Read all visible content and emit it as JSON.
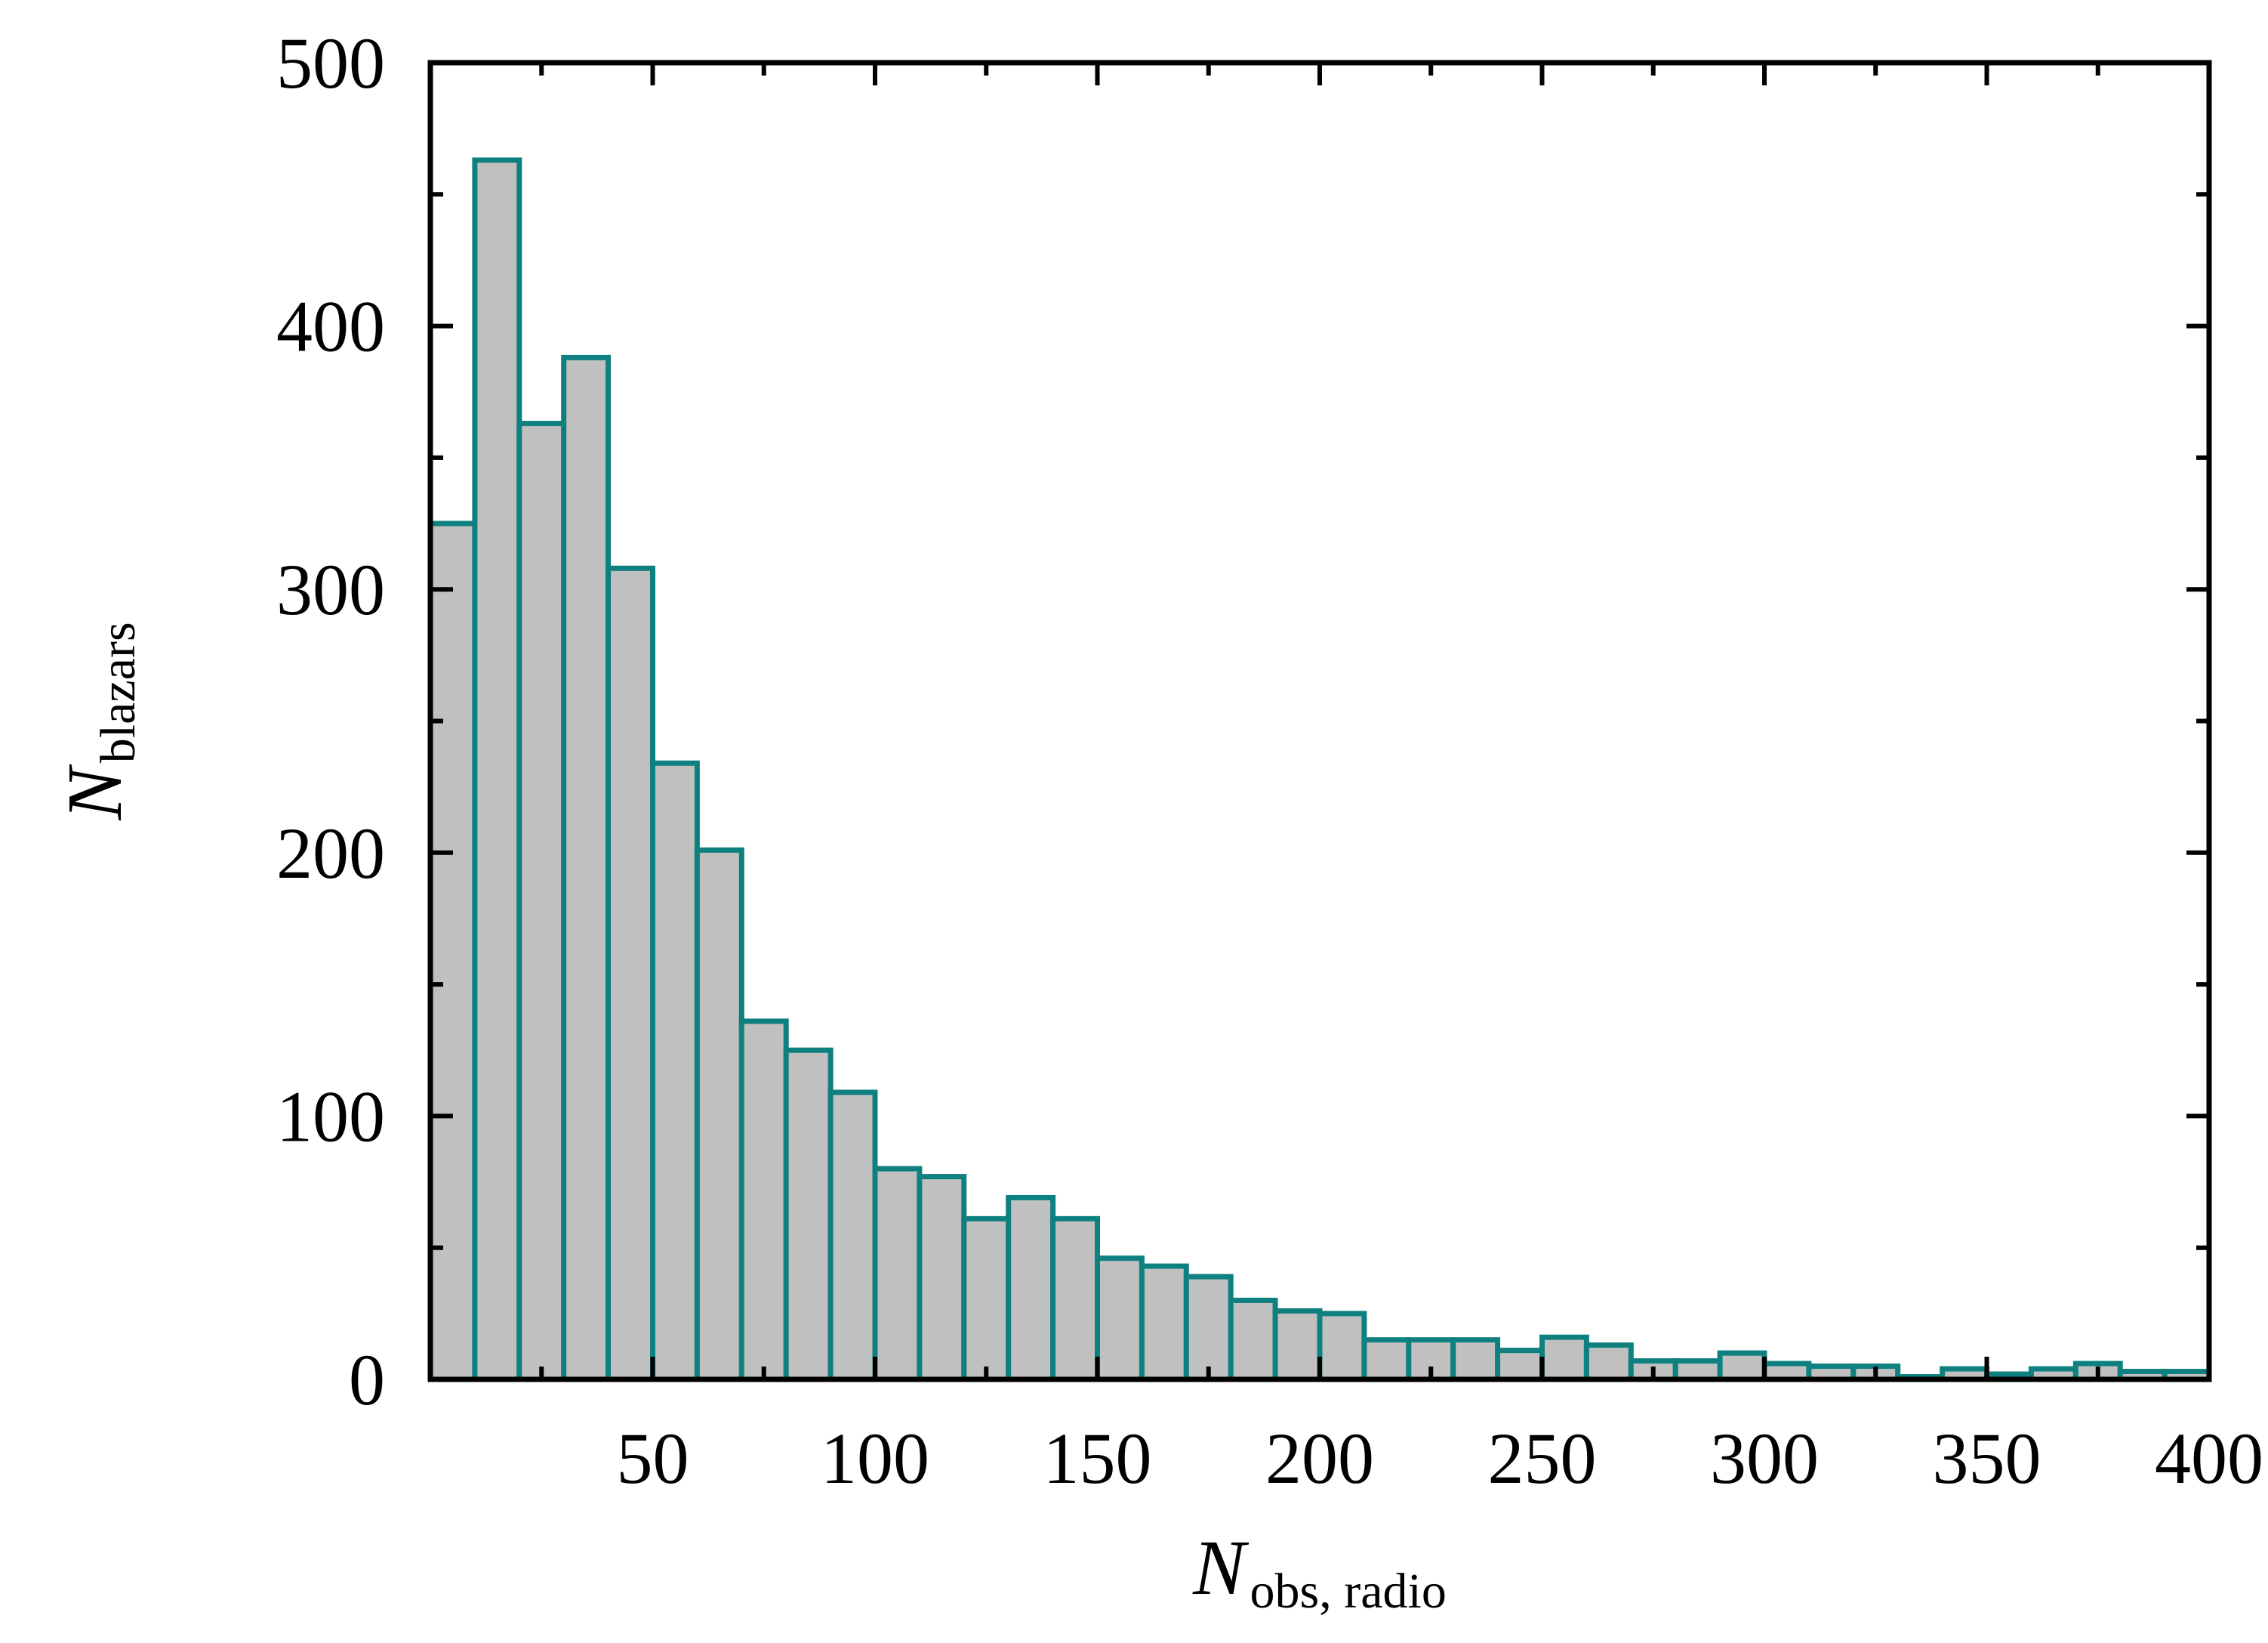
{
  "chart_data": {
    "type": "bar",
    "style": "histogram",
    "bin_width": 10,
    "bins": [
      {
        "start": 0,
        "end": 10,
        "value": 325
      },
      {
        "start": 10,
        "end": 20,
        "value": 463
      },
      {
        "start": 20,
        "end": 30,
        "value": 363
      },
      {
        "start": 30,
        "end": 40,
        "value": 388
      },
      {
        "start": 40,
        "end": 50,
        "value": 308
      },
      {
        "start": 50,
        "end": 60,
        "value": 234
      },
      {
        "start": 60,
        "end": 70,
        "value": 201
      },
      {
        "start": 70,
        "end": 80,
        "value": 136
      },
      {
        "start": 80,
        "end": 90,
        "value": 125
      },
      {
        "start": 90,
        "end": 100,
        "value": 109
      },
      {
        "start": 100,
        "end": 110,
        "value": 80
      },
      {
        "start": 110,
        "end": 120,
        "value": 77
      },
      {
        "start": 120,
        "end": 130,
        "value": 61
      },
      {
        "start": 130,
        "end": 140,
        "value": 69
      },
      {
        "start": 140,
        "end": 150,
        "value": 61
      },
      {
        "start": 150,
        "end": 160,
        "value": 46
      },
      {
        "start": 160,
        "end": 170,
        "value": 43
      },
      {
        "start": 170,
        "end": 180,
        "value": 39
      },
      {
        "start": 180,
        "end": 190,
        "value": 30
      },
      {
        "start": 190,
        "end": 200,
        "value": 26
      },
      {
        "start": 200,
        "end": 210,
        "value": 25
      },
      {
        "start": 210,
        "end": 220,
        "value": 15
      },
      {
        "start": 220,
        "end": 230,
        "value": 15
      },
      {
        "start": 230,
        "end": 240,
        "value": 15
      },
      {
        "start": 240,
        "end": 250,
        "value": 11
      },
      {
        "start": 250,
        "end": 260,
        "value": 16
      },
      {
        "start": 260,
        "end": 270,
        "value": 13
      },
      {
        "start": 270,
        "end": 280,
        "value": 7
      },
      {
        "start": 280,
        "end": 290,
        "value": 7
      },
      {
        "start": 290,
        "end": 300,
        "value": 10
      },
      {
        "start": 300,
        "end": 310,
        "value": 6
      },
      {
        "start": 310,
        "end": 320,
        "value": 5
      },
      {
        "start": 320,
        "end": 330,
        "value": 5
      },
      {
        "start": 330,
        "end": 340,
        "value": 1
      },
      {
        "start": 340,
        "end": 350,
        "value": 4
      },
      {
        "start": 350,
        "end": 360,
        "value": 2
      },
      {
        "start": 360,
        "end": 370,
        "value": 4
      },
      {
        "start": 370,
        "end": 380,
        "value": 6
      },
      {
        "start": 380,
        "end": 390,
        "value": 3
      },
      {
        "start": 390,
        "end": 400,
        "value": 3
      }
    ],
    "xlabel": {
      "main": "N",
      "sub": "obs, radio"
    },
    "ylabel": {
      "main": "N",
      "sub": "blazars"
    },
    "xlim": [
      0,
      400
    ],
    "ylim": [
      0,
      500
    ],
    "xticks": [
      50,
      100,
      150,
      200,
      250,
      300,
      350,
      400
    ],
    "xtick_labels": [
      "50",
      "100",
      "150",
      "200",
      "250",
      "300",
      "350",
      "400"
    ],
    "xminor_ticks": [
      25,
      75,
      125,
      175,
      225,
      275,
      325,
      375
    ],
    "yticks": [
      0,
      100,
      200,
      300,
      400,
      500
    ],
    "ytick_labels": [
      "0",
      "100",
      "200",
      "300",
      "400",
      "500"
    ],
    "yminor_ticks": [
      50,
      150,
      250,
      350,
      450
    ],
    "grid": false,
    "legend": "none",
    "colors": {
      "bar_fill": "#c0c0c0",
      "bar_edge": "#0f8080",
      "axes": "#000000"
    }
  }
}
